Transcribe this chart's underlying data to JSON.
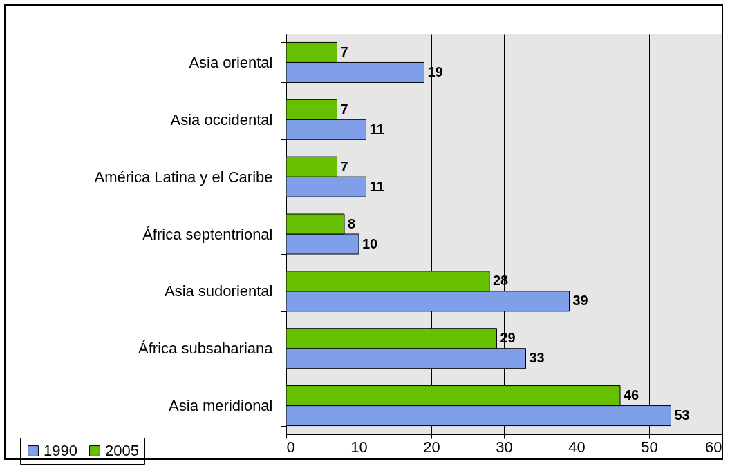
{
  "chart_data": {
    "type": "bar",
    "orientation": "horizontal",
    "categories": [
      "Asia oriental",
      "Asia occidental",
      "América Latina y el Caribe",
      "África septentrional",
      "Asia sudoriental",
      "África subsahariana",
      "Asia meridional"
    ],
    "series": [
      {
        "name": "1990",
        "color": "#7f9fe8",
        "values": [
          19,
          11,
          11,
          10,
          39,
          33,
          53
        ]
      },
      {
        "name": "2005",
        "color": "#66c000",
        "values": [
          7,
          7,
          7,
          8,
          28,
          29,
          46
        ]
      }
    ],
    "xlim": [
      0,
      60
    ],
    "xticks": [
      0,
      10,
      20,
      30,
      40,
      50,
      60
    ],
    "grid": "x",
    "legend": "bottom left",
    "data_labels": true
  }
}
